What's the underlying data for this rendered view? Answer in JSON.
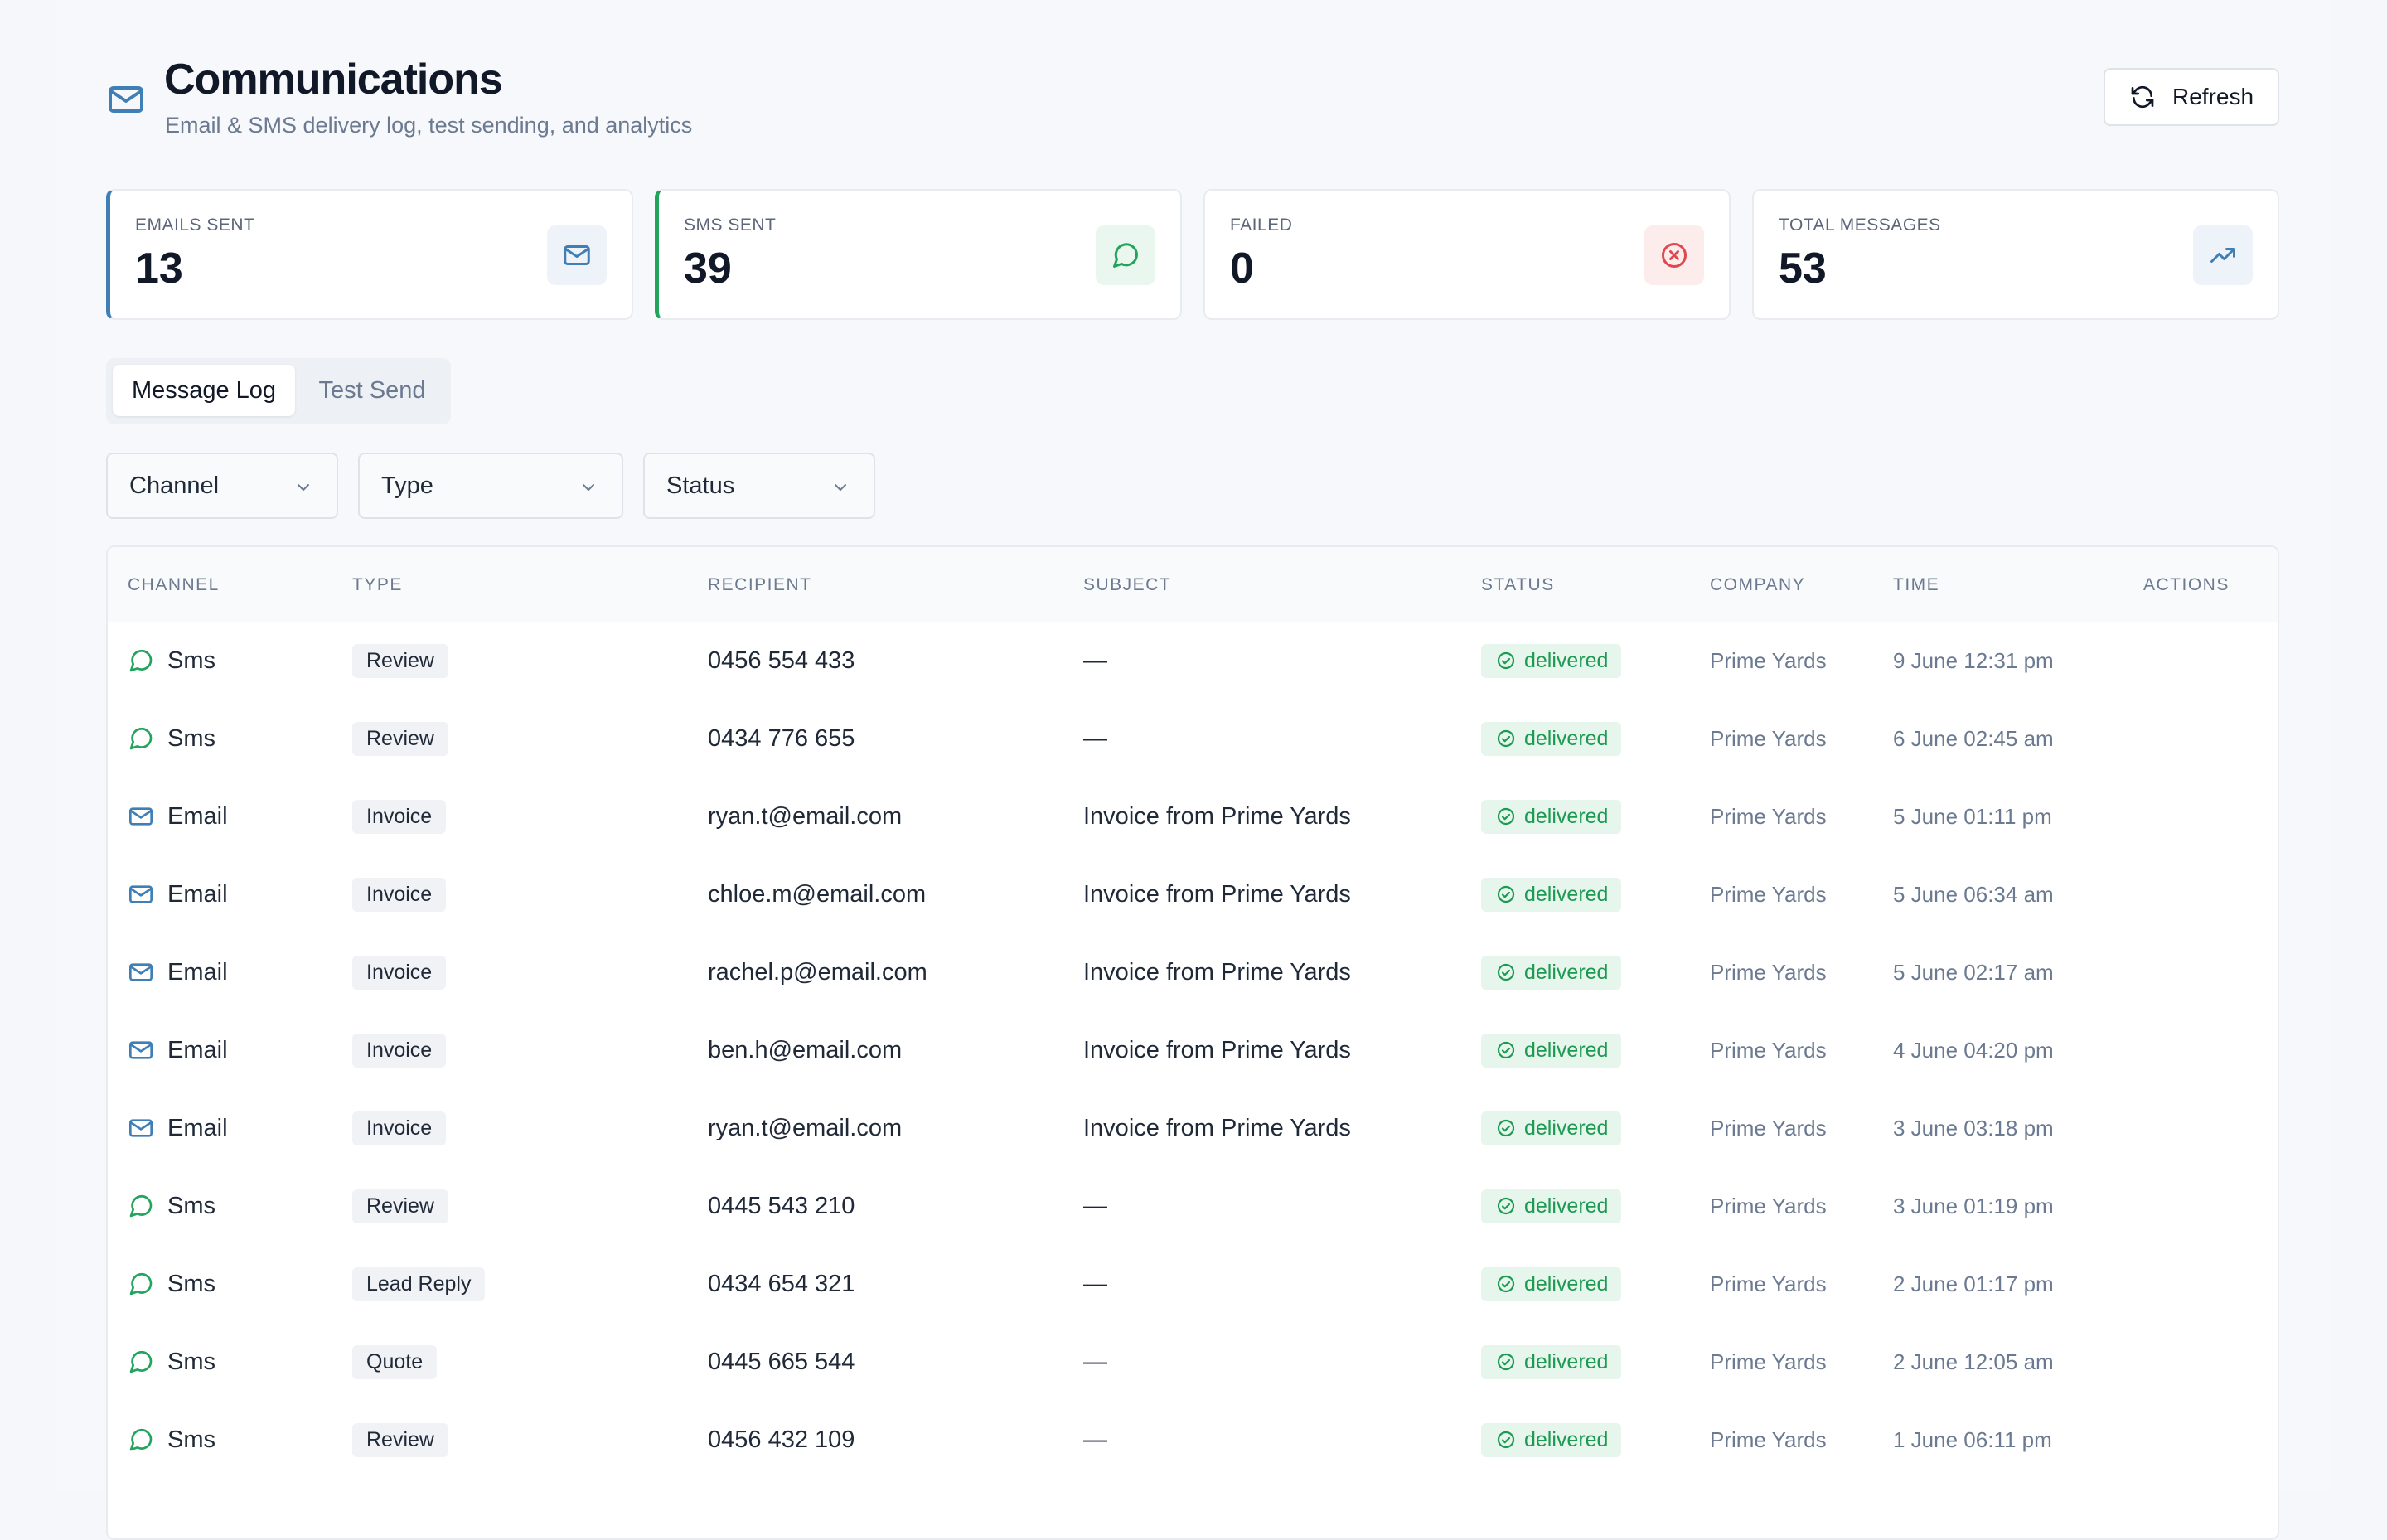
{
  "header": {
    "title": "Communications",
    "subtitle": "Email & SMS delivery log, test sending, and analytics",
    "refresh_label": "Refresh",
    "icon": "mail-icon"
  },
  "stats": [
    {
      "label": "EMAILS SENT",
      "value": "13",
      "icon": "mail-icon",
      "accent": "#3f7fb6",
      "badge_bg": "#edf3f9"
    },
    {
      "label": "SMS SENT",
      "value": "39",
      "icon": "message-circle-icon",
      "accent": "#22a45d",
      "badge_bg": "#eaf7ef"
    },
    {
      "label": "FAILED",
      "value": "0",
      "icon": "x-circle-icon",
      "accent": "#e0484f",
      "badge_bg": "#fdecec"
    },
    {
      "label": "TOTAL MESSAGES",
      "value": "53",
      "icon": "trending-up-icon",
      "accent": "#3f7fb6",
      "badge_bg": "#edf3f9"
    }
  ],
  "tabs": [
    {
      "label": "Message Log",
      "active": true
    },
    {
      "label": "Test Send",
      "active": false
    }
  ],
  "filters": {
    "channel": "Channel",
    "type": "Type",
    "status": "Status"
  },
  "table": {
    "columns": [
      "CHANNEL",
      "TYPE",
      "RECIPIENT",
      "SUBJECT",
      "STATUS",
      "COMPANY",
      "TIME",
      "ACTIONS"
    ],
    "rows": [
      {
        "channel": "Sms",
        "type": "Review",
        "recipient": "0456 554 433",
        "subject": "—",
        "status": "delivered",
        "company": "Prime Yards",
        "time": "9 June 12:31 pm"
      },
      {
        "channel": "Sms",
        "type": "Review",
        "recipient": "0434 776 655",
        "subject": "—",
        "status": "delivered",
        "company": "Prime Yards",
        "time": "6 June 02:45 am"
      },
      {
        "channel": "Email",
        "type": "Invoice",
        "recipient": "ryan.t@email.com",
        "subject": "Invoice from Prime Yards",
        "status": "delivered",
        "company": "Prime Yards",
        "time": "5 June 01:11 pm"
      },
      {
        "channel": "Email",
        "type": "Invoice",
        "recipient": "chloe.m@email.com",
        "subject": "Invoice from Prime Yards",
        "status": "delivered",
        "company": "Prime Yards",
        "time": "5 June 06:34 am"
      },
      {
        "channel": "Email",
        "type": "Invoice",
        "recipient": "rachel.p@email.com",
        "subject": "Invoice from Prime Yards",
        "status": "delivered",
        "company": "Prime Yards",
        "time": "5 June 02:17 am"
      },
      {
        "channel": "Email",
        "type": "Invoice",
        "recipient": "ben.h@email.com",
        "subject": "Invoice from Prime Yards",
        "status": "delivered",
        "company": "Prime Yards",
        "time": "4 June 04:20 pm"
      },
      {
        "channel": "Email",
        "type": "Invoice",
        "recipient": "ryan.t@email.com",
        "subject": "Invoice from Prime Yards",
        "status": "delivered",
        "company": "Prime Yards",
        "time": "3 June 03:18 pm"
      },
      {
        "channel": "Sms",
        "type": "Review",
        "recipient": "0445 543 210",
        "subject": "—",
        "status": "delivered",
        "company": "Prime Yards",
        "time": "3 June 01:19 pm"
      },
      {
        "channel": "Sms",
        "type": "Lead Reply",
        "recipient": "0434 654 321",
        "subject": "—",
        "status": "delivered",
        "company": "Prime Yards",
        "time": "2 June 01:17 pm"
      },
      {
        "channel": "Sms",
        "type": "Quote",
        "recipient": "0445 665 544",
        "subject": "—",
        "status": "delivered",
        "company": "Prime Yards",
        "time": "2 June 12:05 am"
      },
      {
        "channel": "Sms",
        "type": "Review",
        "recipient": "0456 432 109",
        "subject": "—",
        "status": "delivered",
        "company": "Prime Yards",
        "time": "1 June 06:11 pm"
      },
      {
        "channel": "",
        "type": "",
        "recipient": "",
        "subject": "",
        "status": "",
        "company": "",
        "time": ""
      }
    ]
  },
  "colors": {
    "accent_blue": "#3f7fb6",
    "accent_green": "#22a45d",
    "danger": "#e0484f",
    "status_green": "#1d9a52"
  }
}
